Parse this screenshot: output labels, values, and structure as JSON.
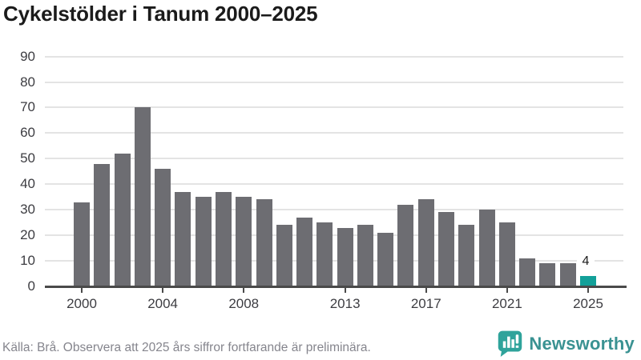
{
  "title": "Cykelstölder i Tanum 2000–2025",
  "chart_data": {
    "type": "bar",
    "categories": [
      "2000",
      "2001",
      "2002",
      "2003",
      "2004",
      "2005",
      "2006",
      "2007",
      "2008",
      "2009",
      "2010",
      "2011",
      "2012",
      "2013",
      "2014",
      "2015",
      "2016",
      "2017",
      "2018",
      "2019",
      "2020",
      "2021",
      "2022",
      "2023",
      "2024",
      "2025"
    ],
    "values": [
      33,
      48,
      52,
      70,
      46,
      37,
      35,
      37,
      35,
      34,
      24,
      27,
      25,
      23,
      24,
      21,
      32,
      34,
      29,
      24,
      30,
      25,
      11,
      9,
      9,
      4
    ],
    "title": "Cykelstölder i Tanum 2000–2025",
    "xlabel": "",
    "ylabel": "",
    "ylim": [
      0,
      90
    ],
    "y_ticks": [
      0,
      10,
      20,
      30,
      40,
      50,
      60,
      70,
      80,
      90
    ],
    "x_tick_labels": [
      "2000",
      "2004",
      "2008",
      "2013",
      "2017",
      "2021",
      "2025"
    ],
    "grid": "horizontal",
    "legend": "none",
    "bar_color": "#6d6d72",
    "highlight_color": "#13a099",
    "highlight_category": "2025",
    "value_label": {
      "category": "2025",
      "text": "4"
    }
  },
  "footer": {
    "source_note": "Källa: Brå. Observera att 2025 års siffror fortfarande är preliminära."
  },
  "branding": {
    "logo_text": "Newsworthy",
    "logo_color": "#3a9292",
    "logo_icon": "bar-chart-speech-bubble-icon",
    "icon_color": "#2fa39b"
  }
}
